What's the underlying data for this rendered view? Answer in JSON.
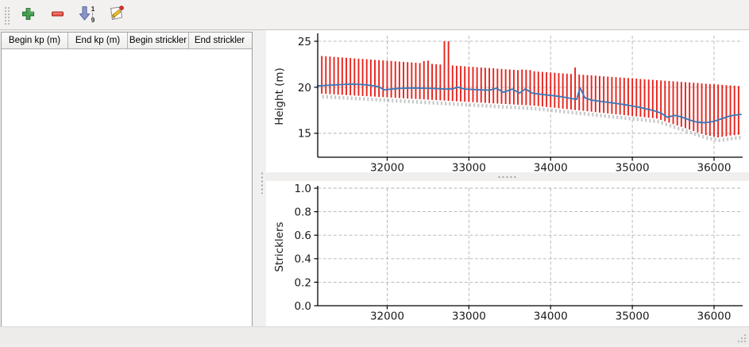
{
  "toolbar": {
    "buttons": [
      {
        "label": "add-line",
        "icon": "plus-icon"
      },
      {
        "label": "remove-line",
        "icon": "minus-icon"
      },
      {
        "label": "sort-ascending",
        "icon": "sort-numeric-ascending-icon"
      },
      {
        "label": "edit",
        "icon": "edit-pencil-icon"
      }
    ],
    "sort_top": "1",
    "sort_bottom": "9",
    "colors": {
      "plus": "#45a14d",
      "minus": "#e8584a",
      "sort_arrow": "#8b96c6",
      "pencil": "#f0c030",
      "edit_dot": "#e03030"
    }
  },
  "table": {
    "columns": [
      "Begin kp (m)",
      "End kp (m)",
      "Begin strickler",
      "End strickler"
    ],
    "rows": []
  },
  "chart_data": [
    {
      "type": "line",
      "title": "",
      "xlabel": "",
      "ylabel": "Height (m)",
      "xlim": [
        31150,
        36350
      ],
      "ylim": [
        12.4,
        25.6
      ],
      "xticks": [
        32000,
        33000,
        34000,
        35000,
        36000
      ],
      "xticklabels": [
        "32000",
        "33000",
        "34000",
        "35000",
        "36000"
      ],
      "yticks": [
        15,
        20,
        25
      ],
      "yticklabels": [
        "15",
        "20",
        "25"
      ],
      "grid": true,
      "grid_color": "#b3b3b3",
      "shadow_color": "#c9c9c9",
      "bars": {
        "name": "cross-section-extent-bars",
        "color": "#e8231c",
        "x_start": 31200,
        "x_step": 50,
        "top": [
          23.4,
          23.37,
          23.34,
          23.3,
          23.27,
          23.24,
          23.21,
          23.18,
          23.14,
          23.11,
          23.08,
          23.05,
          23.02,
          22.98,
          22.95,
          22.92,
          22.89,
          22.86,
          22.82,
          22.79,
          22.76,
          22.73,
          22.7,
          22.66,
          22.63,
          22.85,
          22.9,
          22.54,
          22.5,
          22.47,
          25.0,
          25.0,
          22.38,
          22.34,
          22.31,
          22.28,
          22.25,
          22.22,
          22.18,
          22.15,
          22.12,
          22.09,
          22.06,
          22.02,
          21.99,
          21.96,
          21.93,
          21.9,
          21.86,
          21.93,
          21.9,
          21.87,
          21.74,
          21.7,
          21.67,
          21.64,
          21.61,
          21.58,
          21.54,
          21.51,
          21.48,
          21.45,
          22.15,
          21.38,
          21.35,
          21.32,
          21.29,
          21.26,
          21.22,
          21.19,
          21.16,
          21.13,
          21.1,
          21.06,
          21.03,
          21.0,
          20.97,
          20.94,
          20.9,
          20.87,
          20.84,
          20.81,
          20.78,
          20.74,
          20.71,
          20.68,
          20.65,
          20.62,
          20.58,
          20.55,
          20.52,
          20.49,
          20.46,
          20.42,
          20.39,
          20.36,
          20.33,
          20.3,
          20.26,
          20.23,
          20.2,
          20.17,
          20.14
        ],
        "bottom": [
          19.3,
          19.28,
          19.25,
          19.23,
          19.2,
          19.18,
          19.15,
          19.13,
          19.1,
          19.08,
          19.05,
          19.03,
          19.0,
          18.98,
          18.95,
          18.93,
          18.9,
          18.88,
          18.85,
          18.83,
          18.8,
          18.78,
          18.75,
          18.73,
          18.7,
          18.68,
          18.65,
          18.63,
          18.6,
          18.58,
          18.55,
          18.53,
          18.5,
          18.48,
          18.45,
          18.43,
          18.4,
          18.38,
          18.35,
          18.33,
          18.3,
          18.28,
          18.25,
          18.23,
          18.2,
          18.18,
          18.15,
          18.13,
          18.1,
          18.08,
          18.05,
          18.03,
          18.0,
          17.95,
          17.91,
          17.86,
          17.81,
          17.77,
          17.72,
          17.67,
          17.63,
          17.58,
          17.53,
          17.49,
          17.44,
          17.39,
          17.35,
          17.3,
          17.25,
          17.21,
          17.16,
          17.11,
          17.07,
          17.02,
          16.97,
          16.93,
          16.88,
          16.83,
          16.79,
          16.74,
          16.69,
          16.65,
          16.6,
          16.45,
          16.3,
          16.15,
          16.0,
          15.85,
          15.7,
          15.55,
          15.4,
          15.25,
          15.1,
          14.95,
          14.8,
          14.72,
          14.63,
          14.55,
          14.62,
          14.68,
          14.75,
          14.8,
          14.85
        ]
      },
      "line": {
        "name": "water-level-line",
        "color": "#3d79b8",
        "points": [
          [
            31150,
            20.15
          ],
          [
            31250,
            20.2
          ],
          [
            31400,
            20.28
          ],
          [
            31550,
            20.35
          ],
          [
            31700,
            20.3
          ],
          [
            31820,
            20.18
          ],
          [
            31900,
            20.05
          ],
          [
            31960,
            19.72
          ],
          [
            32050,
            19.8
          ],
          [
            32150,
            19.88
          ],
          [
            32300,
            19.92
          ],
          [
            32450,
            19.9
          ],
          [
            32600,
            19.85
          ],
          [
            32720,
            19.8
          ],
          [
            32800,
            19.82
          ],
          [
            32860,
            20.02
          ],
          [
            32950,
            19.8
          ],
          [
            33100,
            19.74
          ],
          [
            33250,
            19.68
          ],
          [
            33340,
            19.9
          ],
          [
            33420,
            19.45
          ],
          [
            33530,
            19.8
          ],
          [
            33620,
            19.38
          ],
          [
            33690,
            19.82
          ],
          [
            33780,
            19.35
          ],
          [
            33900,
            19.22
          ],
          [
            34000,
            19.12
          ],
          [
            34150,
            18.95
          ],
          [
            34250,
            18.78
          ],
          [
            34320,
            18.68
          ],
          [
            34360,
            19.95
          ],
          [
            34420,
            18.85
          ],
          [
            34500,
            18.6
          ],
          [
            34650,
            18.42
          ],
          [
            34800,
            18.25
          ],
          [
            34950,
            18.05
          ],
          [
            35100,
            17.8
          ],
          [
            35250,
            17.5
          ],
          [
            35350,
            17.2
          ],
          [
            35430,
            16.75
          ],
          [
            35520,
            16.95
          ],
          [
            35600,
            16.78
          ],
          [
            35700,
            16.45
          ],
          [
            35800,
            16.2
          ],
          [
            35900,
            16.15
          ],
          [
            36000,
            16.3
          ],
          [
            36100,
            16.6
          ],
          [
            36200,
            16.9
          ],
          [
            36330,
            17.05
          ]
        ]
      }
    },
    {
      "type": "line",
      "title": "",
      "xlabel": "",
      "ylabel": "Stricklers",
      "xlim": [
        31150,
        36350
      ],
      "ylim": [
        0.0,
        1.0
      ],
      "xticks": [
        32000,
        33000,
        34000,
        35000,
        36000
      ],
      "xticklabels": [
        "32000",
        "33000",
        "34000",
        "35000",
        "36000"
      ],
      "yticks": [
        0.0,
        0.2,
        0.4,
        0.6,
        0.8,
        1.0
      ],
      "yticklabels": [
        "0.0",
        "0.2",
        "0.4",
        "0.6",
        "0.8",
        "1.0"
      ],
      "grid": true,
      "grid_color": "#b3b3b3",
      "series": []
    }
  ]
}
